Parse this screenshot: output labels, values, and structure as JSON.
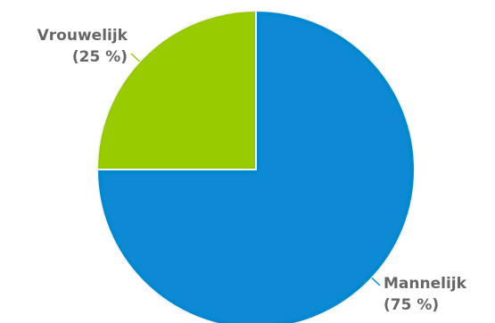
{
  "chart_data": {
    "type": "pie",
    "categories": [
      "Mannelijk",
      "Vrouwelijk"
    ],
    "values": [
      75,
      25
    ],
    "percent_labels": [
      "(75 %)",
      "(25 %)"
    ],
    "colors": [
      "#0a8ad3",
      "#99cc00"
    ],
    "leader_colors": [
      "#0a8ad3",
      "#99cc00"
    ],
    "legend": "none"
  }
}
